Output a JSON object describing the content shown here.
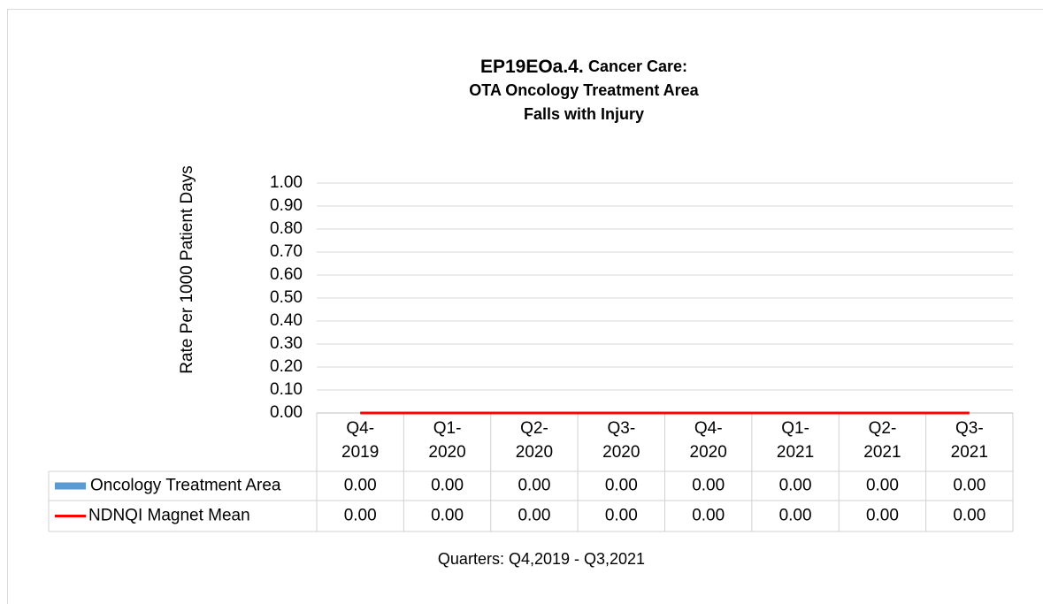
{
  "chart_data": {
    "type": "bar",
    "title_code": "EP19EOa.4.",
    "title": [
      "Cancer Care:",
      "OTA Oncology Treatment Area",
      "Falls with Injury"
    ],
    "y_label": "Rate Per 1000 Patient Days",
    "x_label": "Quarters: Q4,2019 - Q3,2021",
    "categories": [
      [
        "Q4-",
        "2019"
      ],
      [
        "Q1-",
        "2020"
      ],
      [
        "Q2-",
        "2020"
      ],
      [
        "Q3-",
        "2020"
      ],
      [
        "Q4-",
        "2020"
      ],
      [
        "Q1-",
        "2021"
      ],
      [
        "Q2-",
        "2021"
      ],
      [
        "Q3-",
        "2021"
      ]
    ],
    "series": [
      {
        "name": "Oncology Treatment Area",
        "type": "bar",
        "color": "#5b9bd5",
        "values": [
          0,
          0,
          0,
          0,
          0,
          0,
          0,
          0
        ],
        "value_labels": [
          "0.00",
          "0.00",
          "0.00",
          "0.00",
          "0.00",
          "0.00",
          "0.00",
          "0.00"
        ]
      },
      {
        "name": "NDNQI Magnet Mean",
        "type": "line",
        "color": "#ff0000",
        "values": [
          0,
          0,
          0,
          0,
          0,
          0,
          0,
          0
        ],
        "value_labels": [
          "0.00",
          "0.00",
          "0.00",
          "0.00",
          "0.00",
          "0.00",
          "0.00",
          "0.00"
        ]
      }
    ],
    "ylim": [
      0,
      1
    ],
    "yticks": [
      {
        "value": 0,
        "label": "0.00"
      },
      {
        "value": 0.1,
        "label": "0.10"
      },
      {
        "value": 0.2,
        "label": "0.20"
      },
      {
        "value": 0.3,
        "label": "0.30"
      },
      {
        "value": 0.4,
        "label": "0.40"
      },
      {
        "value": 0.5,
        "label": "0.50"
      },
      {
        "value": 0.6,
        "label": "0.60"
      },
      {
        "value": 0.7,
        "label": "0.70"
      },
      {
        "value": 0.8,
        "label": "0.80"
      },
      {
        "value": 0.9,
        "label": "0.90"
      },
      {
        "value": 1,
        "label": "1.00"
      }
    ],
    "grid": true,
    "legend": "table"
  }
}
